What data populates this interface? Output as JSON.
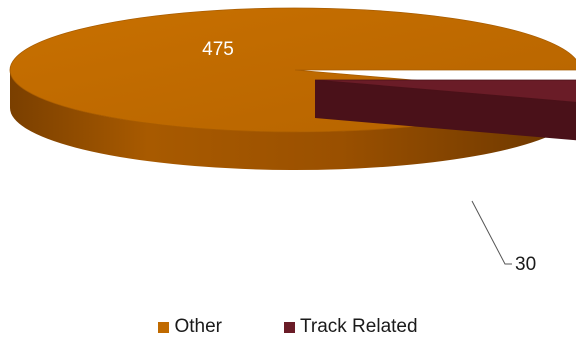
{
  "chart_data": {
    "type": "pie",
    "style": "3d",
    "categories": [
      "Other",
      "Track Related"
    ],
    "values": [
      475,
      30
    ],
    "data_labels": [
      "475",
      "30"
    ],
    "colors": [
      "#c06a00",
      "#6a1c27"
    ],
    "legend_position": "bottom"
  },
  "legend": {
    "items": [
      {
        "label": "Other",
        "color": "#c06a00"
      },
      {
        "label": "Track Related",
        "color": "#6a1c27"
      }
    ]
  }
}
